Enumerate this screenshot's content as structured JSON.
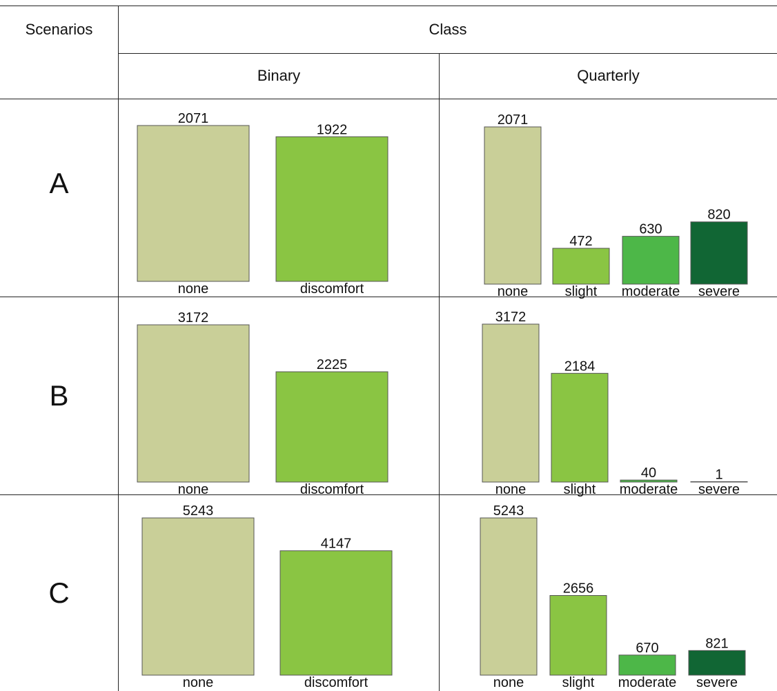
{
  "table": {
    "col_scenarios": "Scenarios",
    "col_class": "Class",
    "sub_binary": "Binary",
    "sub_quarterly": "Quarterly"
  },
  "colors": {
    "none": "#c9cf98",
    "slight": "#8ac543",
    "discomfort": "#8ac543",
    "moderate": "#4db748",
    "severe": "#116634",
    "border": "#555555"
  },
  "chart_data": [
    {
      "type": "bar",
      "scenario": "A",
      "class": "Binary",
      "categories": [
        "none",
        "discomfort"
      ],
      "values": [
        2071,
        1922
      ]
    },
    {
      "type": "bar",
      "scenario": "A",
      "class": "Quarterly",
      "categories": [
        "none",
        "slight",
        "moderate",
        "severe"
      ],
      "values": [
        2071,
        472,
        630,
        820
      ]
    },
    {
      "type": "bar",
      "scenario": "B",
      "class": "Binary",
      "categories": [
        "none",
        "discomfort"
      ],
      "values": [
        3172,
        2225
      ]
    },
    {
      "type": "bar",
      "scenario": "B",
      "class": "Quarterly",
      "categories": [
        "none",
        "slight",
        "moderate",
        "severe"
      ],
      "values": [
        3172,
        2184,
        40,
        1
      ]
    },
    {
      "type": "bar",
      "scenario": "C",
      "class": "Binary",
      "categories": [
        "none",
        "discomfort"
      ],
      "values": [
        5243,
        4147
      ]
    },
    {
      "type": "bar",
      "scenario": "C",
      "class": "Quarterly",
      "categories": [
        "none",
        "slight",
        "moderate",
        "severe"
      ],
      "values": [
        5243,
        2656,
        670,
        821
      ]
    }
  ]
}
